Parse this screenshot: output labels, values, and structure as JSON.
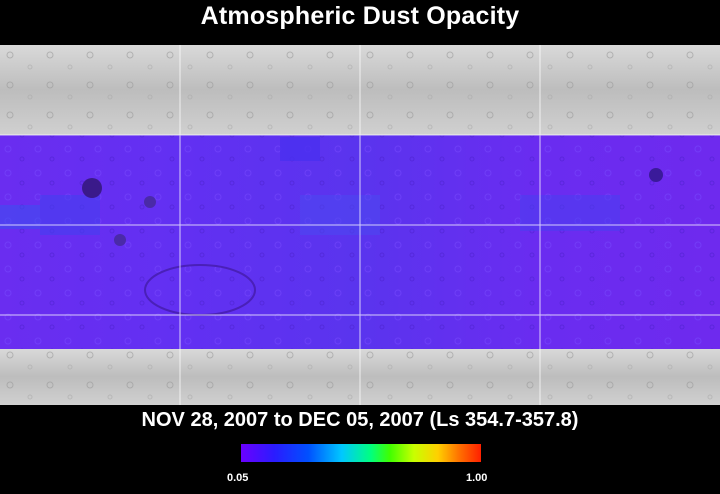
{
  "title": "Atmospheric Dust Opacity",
  "date_range": "NOV 28, 2007 to DEC 05, 2007 (Ls 354.7-357.8)",
  "colorbar": {
    "min_label": "0.05",
    "max_label": "1.00",
    "colors": [
      "#6b00ff",
      "#2a1cff",
      "#0050ff",
      "#00c8ff",
      "#00ff80",
      "#40ff00",
      "#c8ff00",
      "#ffd000",
      "#ff7000",
      "#ff2000"
    ]
  },
  "map": {
    "background_shading": "#c8c8c8",
    "data_band_color": "#6a2cf0",
    "grid_color": "#ffffff"
  }
}
